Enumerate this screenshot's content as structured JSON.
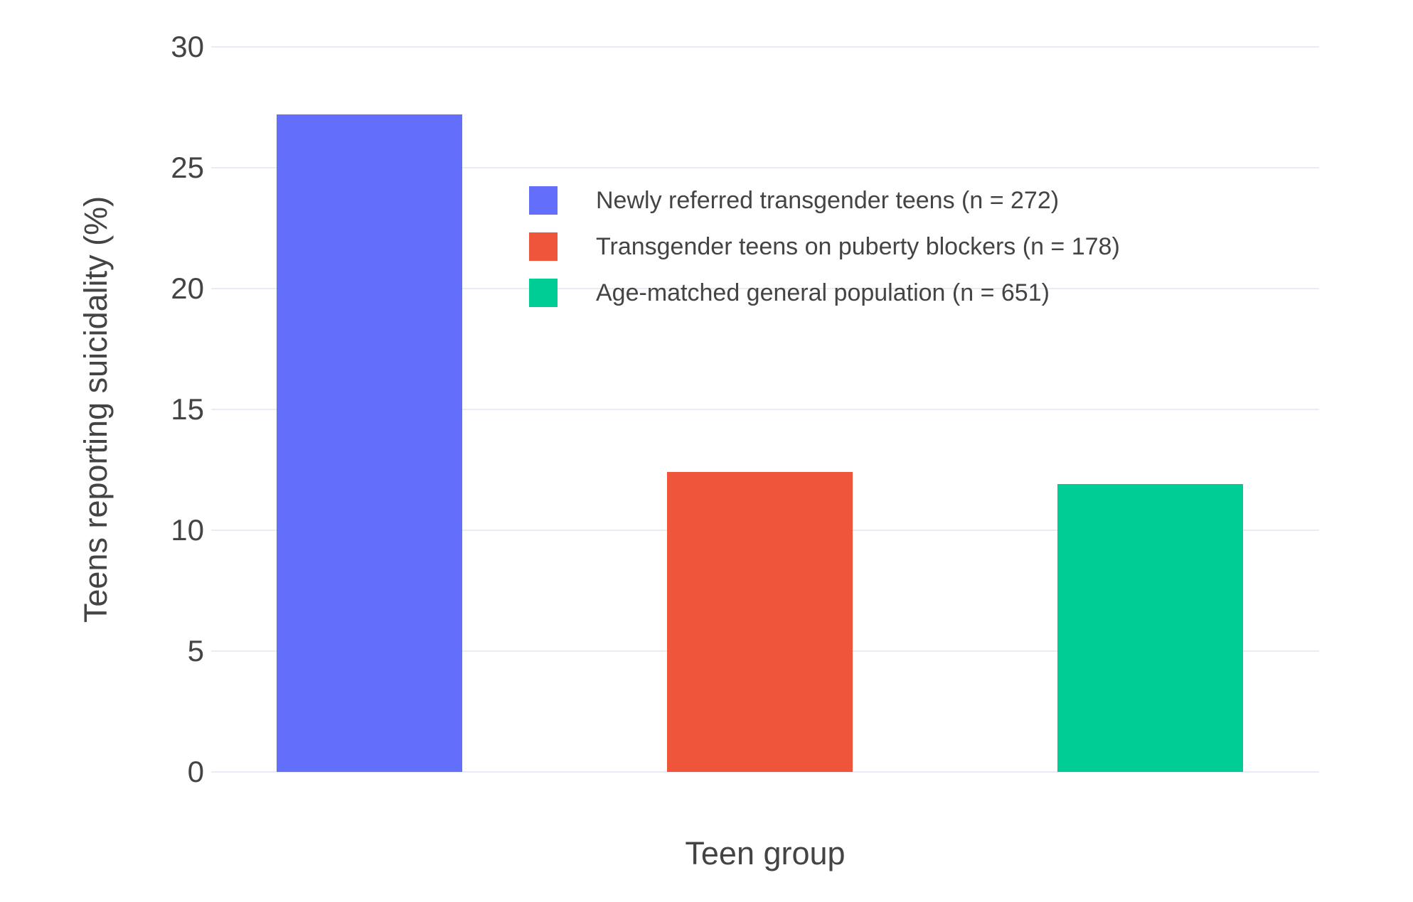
{
  "chart_data": {
    "type": "bar",
    "title": "",
    "xlabel": "Teen group",
    "ylabel": "Teens reporting suicidality (%)",
    "series": [
      {
        "name": "Newly referred transgender teens (n = 272)",
        "n": 272,
        "value": 27.2,
        "color": "#636EFA"
      },
      {
        "name": "Transgender teens on puberty blockers (n = 178)",
        "n": 178,
        "value": 12.4,
        "color": "#EF553B"
      },
      {
        "name": "Age-matched general population (n = 651)",
        "n": 651,
        "value": 11.9,
        "color": "#00CC96"
      }
    ],
    "ylim": [
      0,
      30
    ],
    "yticks": [
      0,
      5,
      10,
      15,
      20,
      25,
      30
    ],
    "grid": true,
    "legend_position": "inside-top-center"
  },
  "colors": {
    "background": "#FFFFFF",
    "grid": "#E8EDF5",
    "text": "#444444",
    "bar_blue": "#636EFA",
    "bar_red": "#EF553B",
    "bar_green": "#00CC96"
  }
}
